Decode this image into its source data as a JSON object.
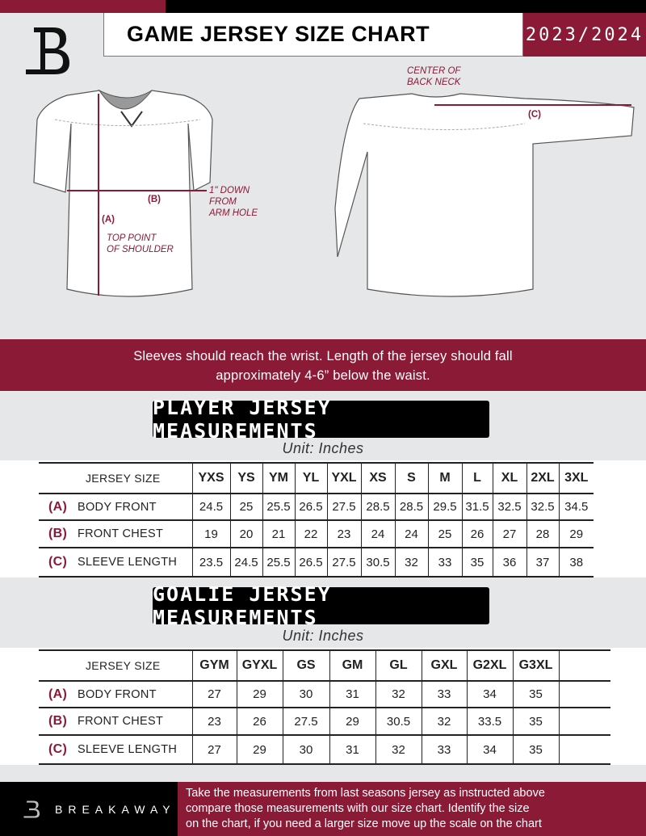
{
  "header": {
    "title": "GAME JERSEY SIZE CHART",
    "season": "2023/2024",
    "logo_letter": "B"
  },
  "colors": {
    "brand": "#8a1a36",
    "black": "#000000",
    "background": "#e6e7e8"
  },
  "diagram": {
    "back_neck_note": [
      "CENTER OF",
      "BACK NECK"
    ],
    "arm_hole_note": [
      "1\" DOWN",
      "FROM",
      "ARM HOLE"
    ],
    "shoulder_note": [
      "TOP POINT",
      "OF SHOULDER"
    ],
    "label_a": "(A)",
    "label_b": "(B)",
    "label_c": "(C)"
  },
  "instructions": [
    "Sleeves should reach the wrist. Length of the jersey should fall",
    "approximately 4-6” below the waist."
  ],
  "player": {
    "title": "PLAYER JERSEY MEASUREMENTS",
    "unit": "Unit: Inches",
    "size_header": "JERSEY SIZE",
    "sizes": [
      "YXS",
      "YS",
      "YM",
      "YL",
      "YXL",
      "XS",
      "S",
      "M",
      "L",
      "XL",
      "2XL",
      "3XL"
    ],
    "rows": [
      {
        "letter": "(A)",
        "label": "BODY FRONT",
        "values": [
          "24.5",
          "25",
          "25.5",
          "26.5",
          "27.5",
          "28.5",
          "28.5",
          "29.5",
          "31.5",
          "32.5",
          "32.5",
          "34.5"
        ]
      },
      {
        "letter": "(B)",
        "label": "FRONT CHEST",
        "values": [
          "19",
          "20",
          "21",
          "22",
          "23",
          "24",
          "24",
          "25",
          "26",
          "27",
          "28",
          "29"
        ]
      },
      {
        "letter": "(C)",
        "label": "SLEEVE LENGTH",
        "values": [
          "23.5",
          "24.5",
          "25.5",
          "26.5",
          "27.5",
          "30.5",
          "32",
          "33",
          "35",
          "36",
          "37",
          "38"
        ]
      }
    ]
  },
  "goalie": {
    "title": "GOALIE JERSEY MEASUREMENTS",
    "unit": "Unit: Inches",
    "size_header": "JERSEY SIZE",
    "sizes": [
      "GYM",
      "GYXL",
      "GS",
      "GM",
      "GL",
      "GXL",
      "G2XL",
      "G3XL"
    ],
    "rows": [
      {
        "letter": "(A)",
        "label": "BODY FRONT",
        "values": [
          "27",
          "29",
          "30",
          "31",
          "32",
          "33",
          "34",
          "35"
        ]
      },
      {
        "letter": "(B)",
        "label": "FRONT CHEST",
        "values": [
          "23",
          "26",
          "27.5",
          "29",
          "30.5",
          "32",
          "33.5",
          "35"
        ]
      },
      {
        "letter": "(C)",
        "label": "SLEEVE LENGTH",
        "values": [
          "27",
          "29",
          "30",
          "31",
          "32",
          "33",
          "34",
          "35"
        ]
      }
    ]
  },
  "footer": {
    "brand": "BREAKAWAY",
    "text": [
      "Take the measurements from last seasons jersey as instructed above",
      "compare those measurements  with our size chart. Identify the size",
      "on the chart, if you need a larger size move up the scale on the chart"
    ]
  }
}
